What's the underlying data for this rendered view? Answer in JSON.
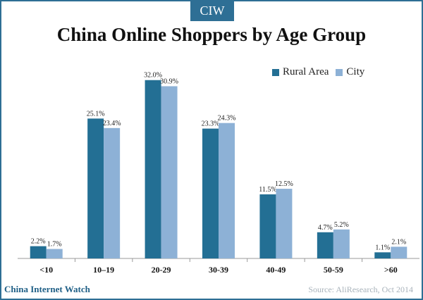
{
  "badge": "CIW",
  "footer": {
    "brand": "China Internet Watch",
    "source": "Source: AliResearch, Oct 2014"
  },
  "colors": {
    "rural": "#236f94",
    "city": "#8db1d6",
    "accent": "#2e6f95"
  },
  "chart_data": {
    "type": "bar",
    "title": "China Online Shoppers by Age Group",
    "xlabel": "",
    "ylabel": "",
    "categories": [
      "<10",
      "10–19",
      "20-29",
      "30-39",
      "40-49",
      "50-59",
      ">60"
    ],
    "series": [
      {
        "name": "Rural Area",
        "values": [
          2.2,
          25.1,
          32.0,
          23.3,
          11.5,
          4.7,
          1.1
        ],
        "labels": [
          "2.2%",
          "25.1%",
          "32.0%",
          "23.3%",
          "11.5%",
          "4.7%",
          "1.1%"
        ]
      },
      {
        "name": "City",
        "values": [
          1.7,
          23.4,
          30.9,
          24.3,
          12.5,
          5.2,
          2.1
        ],
        "labels": [
          "1.7%",
          "23.4%",
          "30.9%",
          "24.3%",
          "12.5%",
          "5.2%",
          "2.1%"
        ]
      }
    ],
    "ylim": [
      0,
      35
    ],
    "grid": false,
    "legend": "top-right"
  }
}
